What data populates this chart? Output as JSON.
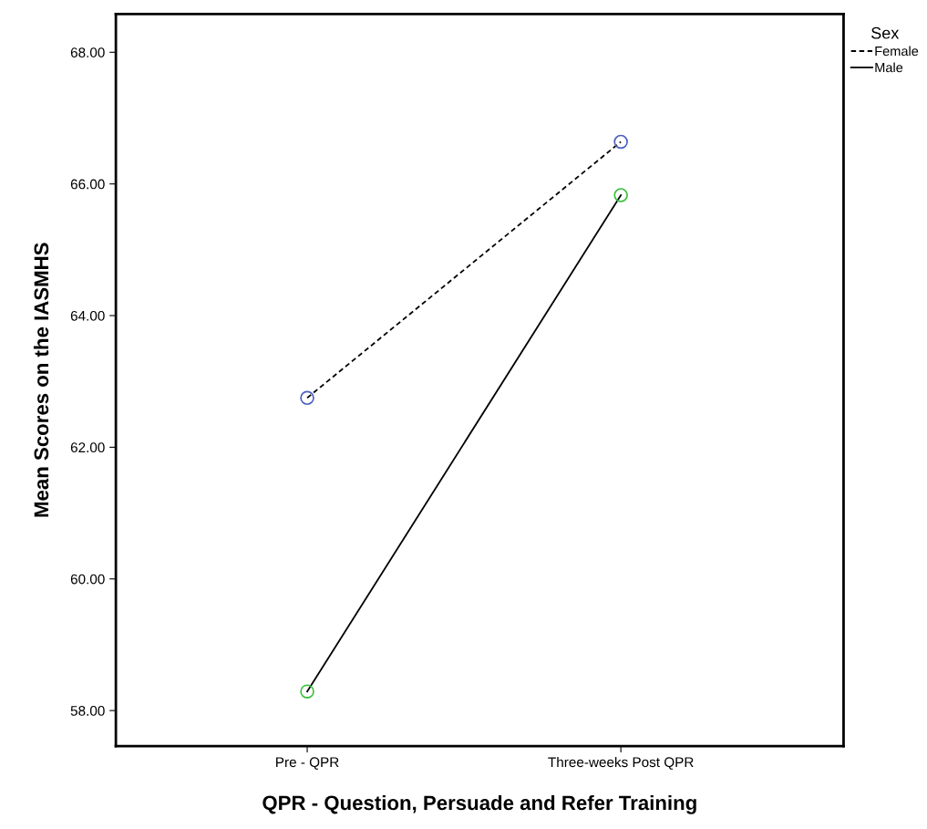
{
  "chart_data": {
    "type": "line",
    "xlabel": "QPR - Question, Persuade and Refer Training",
    "ylabel": "Mean Scores on the IASMHS",
    "legend_title": "Sex",
    "categories": [
      "Pre - QPR",
      "Three-weeks Post QPR"
    ],
    "series": [
      {
        "name": "Female",
        "color": "#000000",
        "colors": [
          "#4a5fc1",
          "#4a5fc1"
        ],
        "line_style": "dashed",
        "values": [
          62.75,
          66.64
        ]
      },
      {
        "name": "Male",
        "color": "#000000",
        "colors": [
          "#3cbf3c",
          "#3cbf3c"
        ],
        "line_style": "solid",
        "values": [
          58.29,
          65.83
        ]
      }
    ],
    "marker": "circle",
    "ylim": [
      57.46,
      68.58
    ],
    "yticks": [
      {
        "value": 58,
        "label": "58.00"
      },
      {
        "value": 60,
        "label": "60.00"
      },
      {
        "value": 62,
        "label": "62.00"
      },
      {
        "value": 64,
        "label": "64.00"
      },
      {
        "value": 66,
        "label": "66.00"
      },
      {
        "value": 68,
        "label": "68.00"
      }
    ],
    "grid": false,
    "legend": "top right"
  }
}
